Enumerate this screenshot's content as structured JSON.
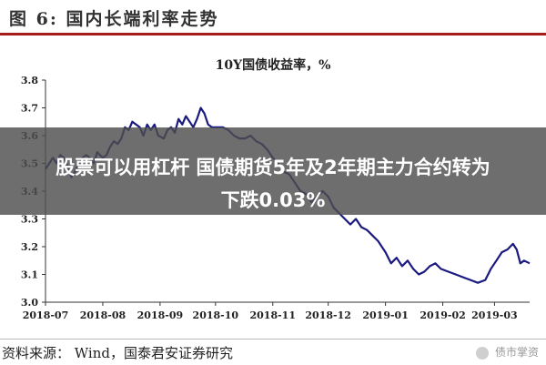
{
  "figure": {
    "label": "图 6:",
    "title": "国内长端利率走势"
  },
  "chart_data": {
    "type": "line",
    "title": "10Y国债收益率，%",
    "xlabel": "",
    "ylabel": "",
    "ylim": [
      3.0,
      3.8
    ],
    "yticks": [
      "3.0",
      "3.1",
      "3.2",
      "3.3",
      "3.4",
      "3.5",
      "3.6",
      "3.7",
      "3.8"
    ],
    "xticks": [
      {
        "date": "2018-07-01",
        "label": "2018-07"
      },
      {
        "date": "2018-08-01",
        "label": "2018-08"
      },
      {
        "date": "2018-09-01",
        "label": "2018-09"
      },
      {
        "date": "2018-10-01",
        "label": "2018-10"
      },
      {
        "date": "2018-11-01",
        "label": "2018-11"
      },
      {
        "date": "2018-12-01",
        "label": "2018-12"
      },
      {
        "date": "2019-01-01",
        "label": "2019-01"
      },
      {
        "date": "2019-02-01",
        "label": "2019-02"
      },
      {
        "date": "2019-03-01",
        "label": "2019-03"
      }
    ],
    "xlim": [
      "2018-07-01",
      "2019-03-20"
    ],
    "grid": false,
    "series": [
      {
        "color": "#1a1a80",
        "points": [
          [
            "2018-07-01",
            3.48
          ],
          [
            "2018-07-03",
            3.5
          ],
          [
            "2018-07-05",
            3.52
          ],
          [
            "2018-07-07",
            3.5
          ],
          [
            "2018-07-09",
            3.53
          ],
          [
            "2018-07-11",
            3.52
          ],
          [
            "2018-07-13",
            3.49
          ],
          [
            "2018-07-15",
            3.45
          ],
          [
            "2018-07-17",
            3.47
          ],
          [
            "2018-07-19",
            3.5
          ],
          [
            "2018-07-21",
            3.52
          ],
          [
            "2018-07-23",
            3.53
          ],
          [
            "2018-07-25",
            3.52
          ],
          [
            "2018-07-27",
            3.5
          ],
          [
            "2018-07-29",
            3.54
          ],
          [
            "2018-08-01",
            3.52
          ],
          [
            "2018-08-03",
            3.53
          ],
          [
            "2018-08-05",
            3.56
          ],
          [
            "2018-08-07",
            3.58
          ],
          [
            "2018-08-09",
            3.57
          ],
          [
            "2018-08-11",
            3.59
          ],
          [
            "2018-08-13",
            3.63
          ],
          [
            "2018-08-15",
            3.62
          ],
          [
            "2018-08-17",
            3.65
          ],
          [
            "2018-08-19",
            3.64
          ],
          [
            "2018-08-21",
            3.63
          ],
          [
            "2018-08-23",
            3.6
          ],
          [
            "2018-08-25",
            3.64
          ],
          [
            "2018-08-27",
            3.62
          ],
          [
            "2018-08-29",
            3.64
          ],
          [
            "2018-08-31",
            3.6
          ],
          [
            "2018-09-03",
            3.59
          ],
          [
            "2018-09-05",
            3.62
          ],
          [
            "2018-09-07",
            3.63
          ],
          [
            "2018-09-09",
            3.61
          ],
          [
            "2018-09-11",
            3.66
          ],
          [
            "2018-09-13",
            3.64
          ],
          [
            "2018-09-15",
            3.67
          ],
          [
            "2018-09-17",
            3.65
          ],
          [
            "2018-09-19",
            3.63
          ],
          [
            "2018-09-21",
            3.66
          ],
          [
            "2018-09-23",
            3.7
          ],
          [
            "2018-09-25",
            3.68
          ],
          [
            "2018-09-27",
            3.64
          ],
          [
            "2018-09-29",
            3.63
          ],
          [
            "2018-10-02",
            3.63
          ],
          [
            "2018-10-05",
            3.63
          ],
          [
            "2018-10-08",
            3.62
          ],
          [
            "2018-10-11",
            3.6
          ],
          [
            "2018-10-14",
            3.59
          ],
          [
            "2018-10-17",
            3.59
          ],
          [
            "2018-10-20",
            3.6
          ],
          [
            "2018-10-23",
            3.58
          ],
          [
            "2018-10-26",
            3.57
          ],
          [
            "2018-10-29",
            3.55
          ],
          [
            "2018-11-01",
            3.52
          ],
          [
            "2018-11-04",
            3.5
          ],
          [
            "2018-11-07",
            3.47
          ],
          [
            "2018-11-10",
            3.46
          ],
          [
            "2018-11-13",
            3.43
          ],
          [
            "2018-11-16",
            3.4
          ],
          [
            "2018-11-19",
            3.39
          ],
          [
            "2018-11-22",
            3.36
          ],
          [
            "2018-11-25",
            3.38
          ],
          [
            "2018-11-28",
            3.4
          ],
          [
            "2018-12-01",
            3.38
          ],
          [
            "2018-12-04",
            3.34
          ],
          [
            "2018-12-07",
            3.32
          ],
          [
            "2018-12-10",
            3.3
          ],
          [
            "2018-12-13",
            3.28
          ],
          [
            "2018-12-16",
            3.3
          ],
          [
            "2018-12-19",
            3.27
          ],
          [
            "2018-12-22",
            3.26
          ],
          [
            "2018-12-25",
            3.24
          ],
          [
            "2018-12-28",
            3.22
          ],
          [
            "2019-01-01",
            3.18
          ],
          [
            "2019-01-04",
            3.14
          ],
          [
            "2019-01-07",
            3.16
          ],
          [
            "2019-01-10",
            3.13
          ],
          [
            "2019-01-13",
            3.15
          ],
          [
            "2019-01-16",
            3.12
          ],
          [
            "2019-01-19",
            3.1
          ],
          [
            "2019-01-22",
            3.11
          ],
          [
            "2019-01-25",
            3.13
          ],
          [
            "2019-01-28",
            3.14
          ],
          [
            "2019-01-31",
            3.12
          ],
          [
            "2019-02-04",
            3.11
          ],
          [
            "2019-02-08",
            3.1
          ],
          [
            "2019-02-12",
            3.09
          ],
          [
            "2019-02-16",
            3.08
          ],
          [
            "2019-02-20",
            3.07
          ],
          [
            "2019-02-24",
            3.08
          ],
          [
            "2019-02-27",
            3.12
          ],
          [
            "2019-03-02",
            3.15
          ],
          [
            "2019-03-05",
            3.18
          ],
          [
            "2019-03-08",
            3.19
          ],
          [
            "2019-03-11",
            3.21
          ],
          [
            "2019-03-13",
            3.19
          ],
          [
            "2019-03-15",
            3.14
          ],
          [
            "2019-03-17",
            3.15
          ],
          [
            "2019-03-20",
            3.14
          ]
        ]
      }
    ]
  },
  "overlay": {
    "line1": "股票可以用杠杆 国债期货5年及2年期主力合约转为",
    "line2": "下跌0.03%"
  },
  "source": {
    "text": "资料来源： Wind，国泰君安证券研究"
  },
  "watermark": {
    "text": "债市掌资"
  }
}
